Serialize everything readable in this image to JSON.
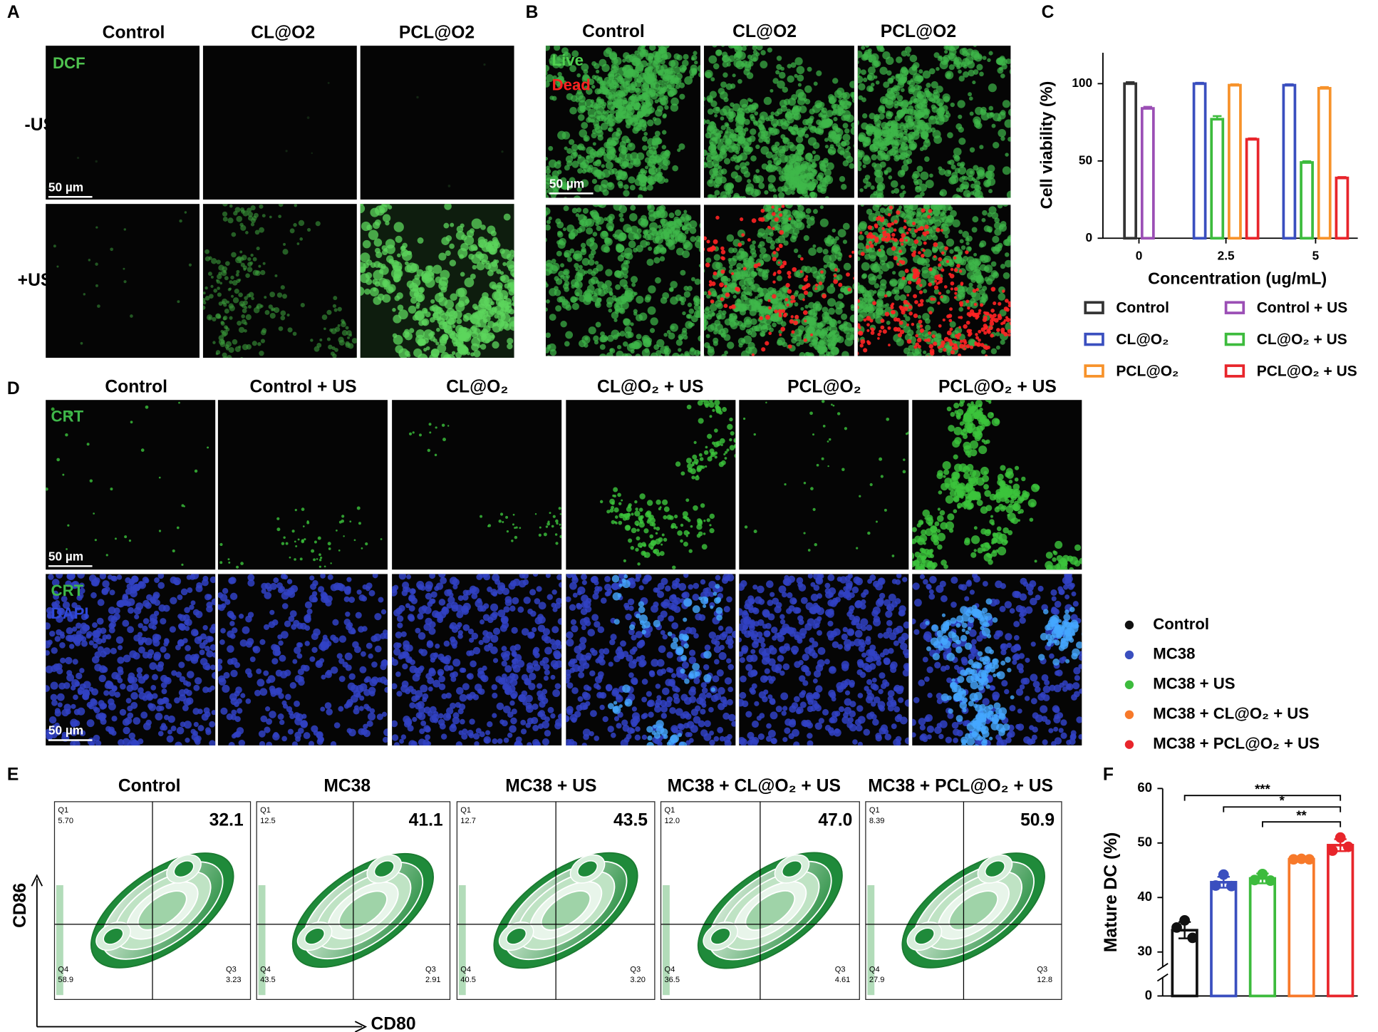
{
  "panel_labels": [
    "A",
    "B",
    "C",
    "D",
    "E",
    "F"
  ],
  "panel_a": {
    "columns": [
      "Control",
      "CL@O2",
      "PCL@O2"
    ],
    "rows": [
      "-US",
      "+US"
    ],
    "stain": "DCF",
    "scale_bar": "50 µm"
  },
  "panel_b": {
    "columns": [
      "Control",
      "CL@O2",
      "PCL@O2"
    ],
    "stains": [
      "Live",
      "Dead"
    ],
    "scale_bar": "50 µm"
  },
  "panel_d": {
    "columns": [
      "Control",
      "Control + US",
      "CL@O₂",
      "CL@O₂ + US",
      "PCL@O₂",
      "PCL@O₂ + US"
    ],
    "row1_stains": [
      "CRT"
    ],
    "row2_stains": [
      "CRT",
      "DAPI"
    ],
    "scale_bars": [
      "50 µm",
      "50 µm"
    ]
  },
  "panel_e": {
    "x_label": "CD80",
    "y_label": "CD86",
    "quadrant_names": {
      "q1": "Q1",
      "q3": "Q3",
      "q4": "Q4"
    },
    "plots": [
      {
        "title": "Control",
        "q1": "5.70",
        "q2": "32.1",
        "q3": "3.23",
        "q4": "58.9"
      },
      {
        "title": "MC38",
        "q1": "12.5",
        "q2": "41.1",
        "q3": "2.91",
        "q4": "43.5"
      },
      {
        "title": "MC38 + US",
        "q1": "12.7",
        "q2": "43.5",
        "q3": "3.20",
        "q4": "40.5"
      },
      {
        "title": "MC38 + CL@O₂ + US",
        "q1": "12.0",
        "q2": "47.0",
        "q3": "4.61",
        "q4": "36.5"
      },
      {
        "title": "MC38 + PCL@O₂ + US",
        "q1": "8.39",
        "q2": "50.9",
        "q3": "12.8",
        "q4": "27.9"
      }
    ]
  },
  "chart_data": [
    {
      "type": "bar",
      "ylabel": "Cell viability (%)",
      "xlabel": "Concentration (ug/mL)",
      "categories": [
        "0",
        "2.5",
        "5"
      ],
      "series": [
        {
          "name": "Control",
          "color": "#333333",
          "values": [
            100,
            null,
            null
          ],
          "errors": [
            1,
            null,
            null
          ]
        },
        {
          "name": "Control + US",
          "color": "#9b4fb5",
          "values": [
            84,
            null,
            null
          ],
          "errors": [
            1,
            null,
            null
          ]
        },
        {
          "name": "CL@O₂",
          "color": "#3a4fbf",
          "values": [
            null,
            100,
            99
          ],
          "errors": [
            null,
            0.6,
            0.6
          ]
        },
        {
          "name": "CL@O₂ + US",
          "color": "#3dbb3d",
          "values": [
            null,
            77,
            49
          ],
          "errors": [
            null,
            2,
            0.8
          ]
        },
        {
          "name": "PCL@O₂",
          "color": "#f7922a",
          "values": [
            null,
            99,
            97
          ],
          "errors": [
            null,
            0.6,
            0.8
          ]
        },
        {
          "name": "PCL@O₂ + US",
          "color": "#e8252b",
          "values": [
            null,
            64,
            39
          ],
          "errors": [
            null,
            0.6,
            0.6
          ]
        }
      ],
      "ylim": [
        0,
        120
      ],
      "yticks": [
        0,
        50,
        100
      ]
    },
    {
      "type": "bar",
      "ylabel": "Mature DC (%)",
      "categories": [
        "Control",
        "MC38",
        "MC38 + US",
        "MC38 + CL@O₂ + US",
        "MC38 + PCL@O₂ + US"
      ],
      "colors": [
        "#111111",
        "#3a4fbf",
        "#3dbb3d",
        "#f7792a",
        "#e8252b"
      ],
      "values": [
        34,
        42.8,
        43.5,
        47,
        49.6
      ],
      "errors": [
        1.5,
        1,
        0.9,
        0.2,
        1.1
      ],
      "points": [
        [
          34.5,
          35.8,
          32.6
        ],
        [
          42.2,
          44.2,
          42.1
        ],
        [
          43.2,
          44.3,
          43.1
        ],
        [
          47,
          47.1,
          47
        ],
        [
          48.6,
          51,
          49.3
        ]
      ],
      "ylim": [
        30,
        60
      ],
      "yticks": [
        0,
        30,
        40,
        50,
        60
      ],
      "axis_break": true,
      "annotations": [
        "***",
        "*",
        "**"
      ]
    }
  ]
}
